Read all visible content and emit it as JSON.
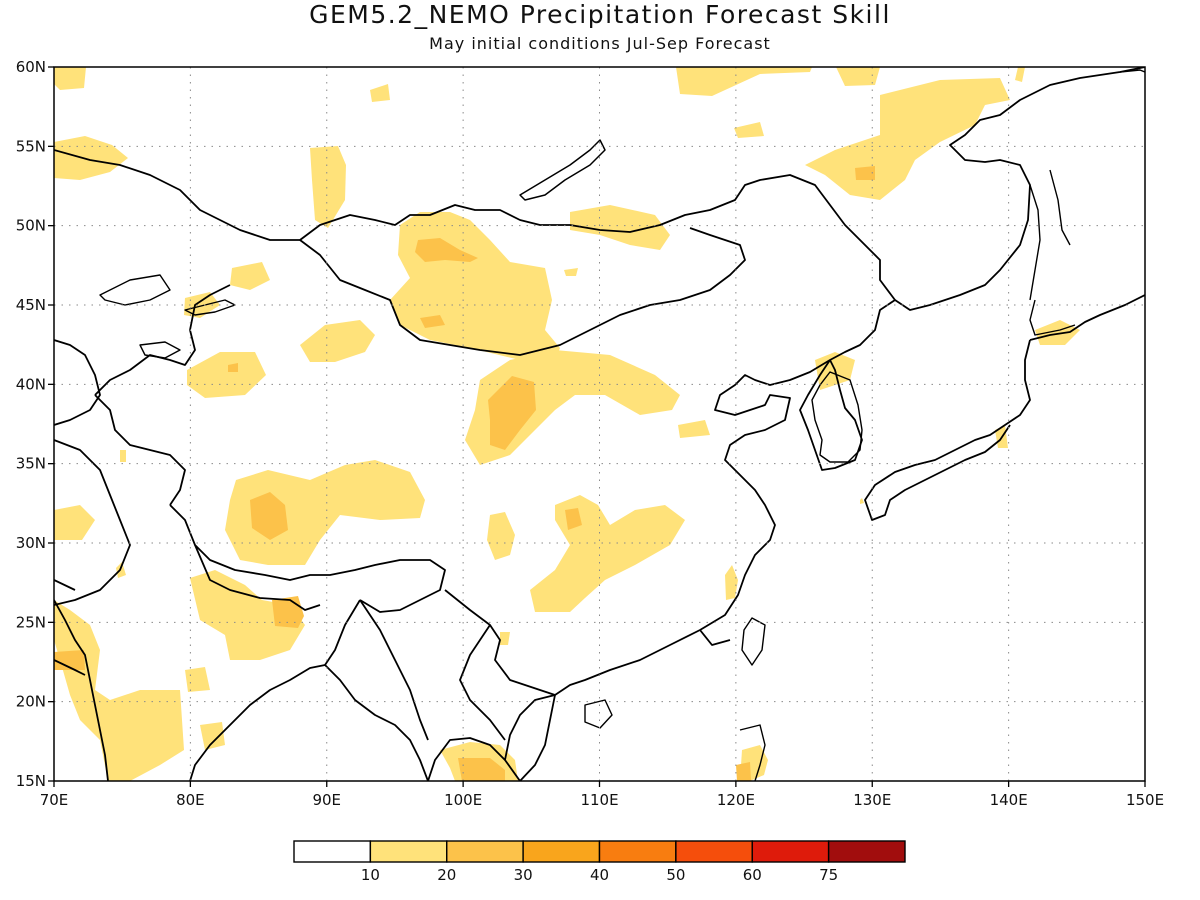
{
  "title": "GEM5.2_NEMO Precipitation Forecast Skill",
  "subtitle": "May initial conditions  Jul-Sep Forecast",
  "map": {
    "lon_range": [
      70,
      150
    ],
    "lat_range": [
      15,
      60
    ],
    "lon_ticks": [
      "70E",
      "80E",
      "90E",
      "100E",
      "110E",
      "120E",
      "130E",
      "140E",
      "150E"
    ],
    "lat_ticks": [
      "15N",
      "20N",
      "25N",
      "30N",
      "35N",
      "40N",
      "45N",
      "50N",
      "55N",
      "60N"
    ],
    "grid": "dotted",
    "projection": "lat-lon"
  },
  "colorbar": {
    "bin_labels": [
      "10",
      "20",
      "30",
      "40",
      "50",
      "60",
      "75"
    ],
    "colors": [
      "#ffffff",
      "#ffe27a",
      "#fcc24a",
      "#f9a51c",
      "#f87d10",
      "#f54e0c",
      "#de1b0b",
      "#a10d0d"
    ]
  }
}
